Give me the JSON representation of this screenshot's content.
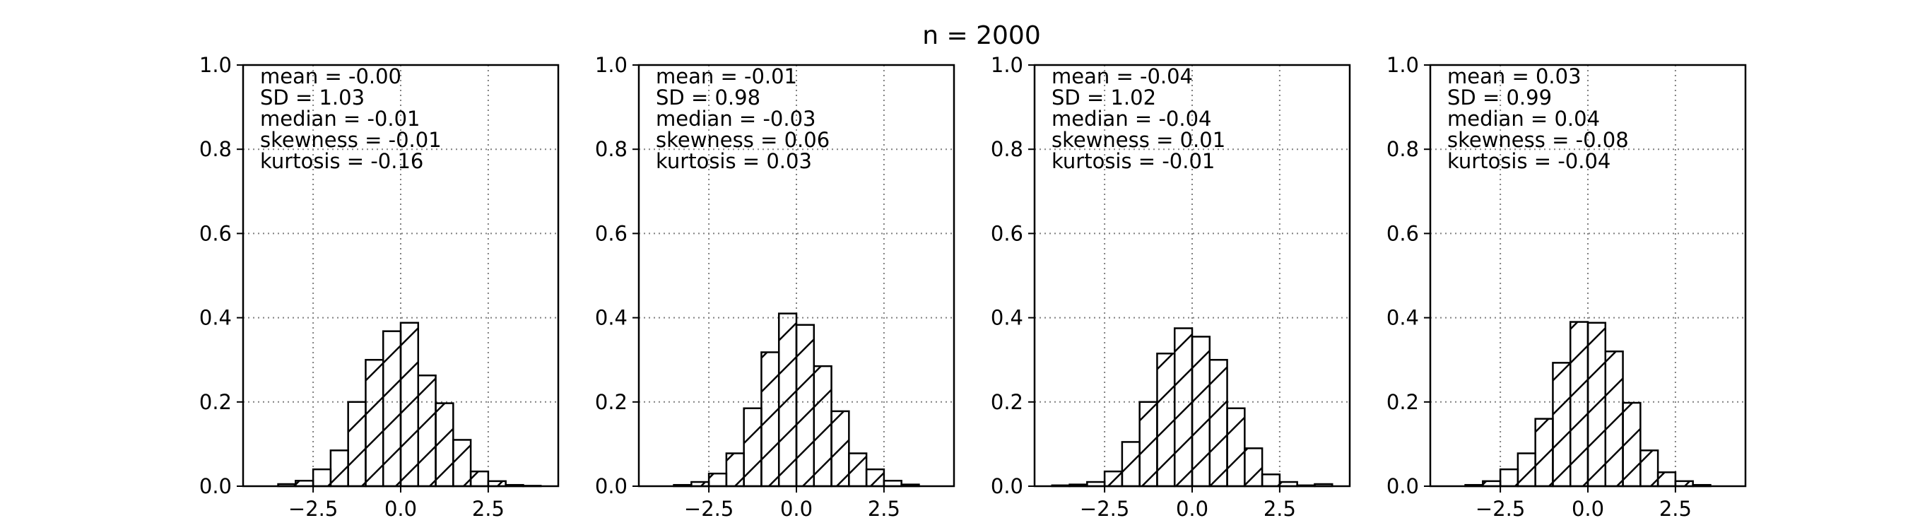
{
  "figure": {
    "title": "n = 2000"
  },
  "chart_data": [
    {
      "type": "bar",
      "bin_edges": [
        -4.0,
        -3.5,
        -3.0,
        -2.5,
        -2.0,
        -1.5,
        -1.0,
        -0.5,
        0.0,
        0.5,
        1.0,
        1.5,
        2.0,
        2.5,
        3.0,
        3.5,
        4.0
      ],
      "values": [
        0.0,
        0.005,
        0.013,
        0.04,
        0.085,
        0.2,
        0.3,
        0.368,
        0.388,
        0.263,
        0.197,
        0.11,
        0.035,
        0.012,
        0.003,
        0.001
      ],
      "xlim": [
        -4.5,
        4.5
      ],
      "ylim": [
        0.0,
        1.0
      ],
      "xticks": [
        -2.5,
        0.0,
        2.5
      ],
      "xtick_labels": [
        "−2.5",
        "0.0",
        "2.5"
      ],
      "yticks": [
        0.0,
        0.2,
        0.4,
        0.6,
        0.8,
        1.0
      ],
      "ytick_labels": [
        "0.0",
        "0.2",
        "0.4",
        "0.6",
        "0.8",
        "1.0"
      ],
      "grid": true,
      "hatch": "/",
      "stats": [
        "mean = -0.00",
        "SD = 1.03",
        "median = -0.01",
        "skewness = -0.01",
        "kurtosis = -0.16"
      ]
    },
    {
      "type": "bar",
      "bin_edges": [
        -4.0,
        -3.5,
        -3.0,
        -2.5,
        -2.0,
        -1.5,
        -1.0,
        -0.5,
        0.0,
        0.5,
        1.0,
        1.5,
        2.0,
        2.5,
        3.0,
        3.5,
        4.0
      ],
      "values": [
        0.0,
        0.003,
        0.01,
        0.03,
        0.078,
        0.185,
        0.318,
        0.41,
        0.383,
        0.285,
        0.178,
        0.078,
        0.04,
        0.013,
        0.004,
        0.0
      ],
      "xlim": [
        -4.5,
        4.5
      ],
      "ylim": [
        0.0,
        1.0
      ],
      "xticks": [
        -2.5,
        0.0,
        2.5
      ],
      "xtick_labels": [
        "−2.5",
        "0.0",
        "2.5"
      ],
      "yticks": [
        0.0,
        0.2,
        0.4,
        0.6,
        0.8,
        1.0
      ],
      "ytick_labels": [
        "0.0",
        "0.2",
        "0.4",
        "0.6",
        "0.8",
        "1.0"
      ],
      "grid": true,
      "hatch": "/",
      "stats": [
        "mean = -0.01",
        "SD = 0.98",
        "median = -0.03",
        "skewness = 0.06",
        "kurtosis = 0.03"
      ]
    },
    {
      "type": "bar",
      "bin_edges": [
        -4.0,
        -3.5,
        -3.0,
        -2.5,
        -2.0,
        -1.5,
        -1.0,
        -0.5,
        0.0,
        0.5,
        1.0,
        1.5,
        2.0,
        2.5,
        3.0,
        3.5,
        4.0
      ],
      "values": [
        0.002,
        0.004,
        0.01,
        0.035,
        0.105,
        0.2,
        0.315,
        0.375,
        0.355,
        0.3,
        0.185,
        0.09,
        0.028,
        0.01,
        0.002,
        0.005
      ],
      "xlim": [
        -4.5,
        4.5
      ],
      "ylim": [
        0.0,
        1.0
      ],
      "xticks": [
        -2.5,
        0.0,
        2.5
      ],
      "xtick_labels": [
        "−2.5",
        "0.0",
        "2.5"
      ],
      "yticks": [
        0.0,
        0.2,
        0.4,
        0.6,
        0.8,
        1.0
      ],
      "ytick_labels": [
        "0.0",
        "0.2",
        "0.4",
        "0.6",
        "0.8",
        "1.0"
      ],
      "grid": true,
      "hatch": "/",
      "stats": [
        "mean = -0.04",
        "SD = 1.02",
        "median = -0.04",
        "skewness = 0.01",
        "kurtosis = -0.01"
      ]
    },
    {
      "type": "bar",
      "bin_edges": [
        -4.0,
        -3.5,
        -3.0,
        -2.5,
        -2.0,
        -1.5,
        -1.0,
        -0.5,
        0.0,
        0.5,
        1.0,
        1.5,
        2.0,
        2.5,
        3.0,
        3.5,
        4.0
      ],
      "values": [
        0.0,
        0.003,
        0.012,
        0.04,
        0.078,
        0.16,
        0.293,
        0.39,
        0.388,
        0.32,
        0.198,
        0.085,
        0.033,
        0.012,
        0.003,
        0.0
      ],
      "xlim": [
        -4.5,
        4.5
      ],
      "ylim": [
        0.0,
        1.0
      ],
      "xticks": [
        -2.5,
        0.0,
        2.5
      ],
      "xtick_labels": [
        "−2.5",
        "0.0",
        "2.5"
      ],
      "yticks": [
        0.0,
        0.2,
        0.4,
        0.6,
        0.8,
        1.0
      ],
      "ytick_labels": [
        "0.0",
        "0.2",
        "0.4",
        "0.6",
        "0.8",
        "1.0"
      ],
      "grid": true,
      "hatch": "/",
      "stats": [
        "mean = 0.03",
        "SD = 0.99",
        "median = 0.04",
        "skewness = -0.08",
        "kurtosis = -0.04"
      ]
    }
  ]
}
